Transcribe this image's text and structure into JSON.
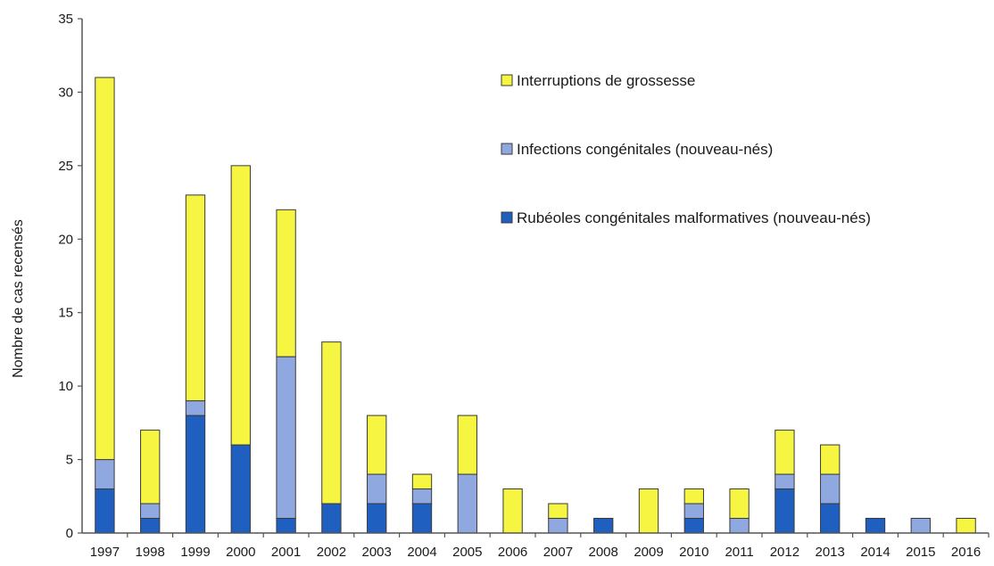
{
  "chart_data": {
    "type": "bar",
    "stacked": true,
    "title": "",
    "xlabel": "",
    "ylabel": "Nombre de cas recensés",
    "ylim": [
      0,
      35
    ],
    "yticks": [
      0,
      5,
      10,
      15,
      20,
      25,
      30,
      35
    ],
    "grid": false,
    "legend_position": "top-right",
    "categories": [
      "1997",
      "1998",
      "1999",
      "2000",
      "2001",
      "2002",
      "2003",
      "2004",
      "2005",
      "2006",
      "2007",
      "2008",
      "2009",
      "2010",
      "2011",
      "2012",
      "2013",
      "2014",
      "2015",
      "2016"
    ],
    "series": [
      {
        "name": "Rubéoles congénitales malformatives (nouveau-nés)",
        "color": "#1f5fbf",
        "values": [
          3,
          1,
          8,
          6,
          1,
          2,
          2,
          2,
          0,
          0,
          0,
          1,
          0,
          1,
          0,
          3,
          2,
          1,
          0,
          0
        ]
      },
      {
        "name": "Infections congénitales (nouveau-nés)",
        "color": "#8fa8e0",
        "values": [
          2,
          1,
          1,
          0,
          11,
          0,
          2,
          1,
          4,
          0,
          1,
          0,
          0,
          1,
          1,
          1,
          2,
          0,
          1,
          0
        ]
      },
      {
        "name": "Interruptions de grossesse",
        "color": "#f5f542",
        "values": [
          26,
          5,
          14,
          19,
          10,
          11,
          4,
          1,
          4,
          3,
          1,
          0,
          3,
          1,
          2,
          3,
          2,
          0,
          0,
          1
        ]
      }
    ],
    "legend_order": [
      "Interruptions de grossesse",
      "Infections congénitales (nouveau-nés)",
      "Rubéoles congénitales malformatives (nouveau-nés)"
    ]
  }
}
